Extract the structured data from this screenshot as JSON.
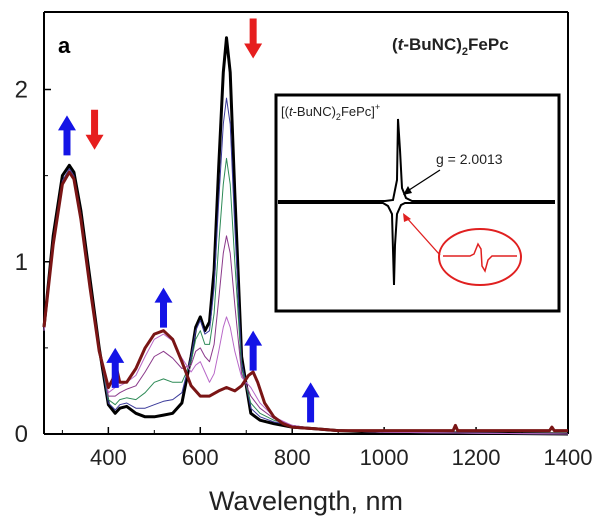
{
  "panel_label": "a",
  "compound_label": {
    "prefix": "(",
    "italic": "t",
    "mid": "-BuNC)",
    "sub": "2",
    "suffix": "FePc"
  },
  "inset": {
    "label": {
      "prefix": "[(",
      "italic": "t",
      "mid": "-BuNC)",
      "sub": "2",
      "tail": "FePc]",
      "sup": "+"
    },
    "annotation": "g = 2.0013"
  },
  "colors": {
    "up_arrow": "#1414e6",
    "down_arrow": "#e61e1e",
    "final_spectrum": "#7a1515",
    "initial_spectrum": "#000000",
    "circle": "#e02020",
    "epr_trace": "#000000"
  },
  "chart_data": {
    "type": "line",
    "xlabel": "Wavelength, nm",
    "ylabel": "",
    "xlim": [
      260,
      1400
    ],
    "ylim": [
      0,
      2.45
    ],
    "x_ticks": [
      400,
      600,
      800,
      1000,
      1200,
      1400
    ],
    "x_tick_labels": [
      "400",
      "600",
      "800",
      "1000",
      "1200",
      "1400"
    ],
    "y_ticks": [
      0,
      1,
      2
    ],
    "y_tick_labels": [
      "0",
      "1",
      "2"
    ],
    "grid": false,
    "legend": "none",
    "arrows": [
      {
        "direction": "up",
        "x": 310,
        "y": 1.85
      },
      {
        "direction": "down",
        "x": 370,
        "y": 1.65
      },
      {
        "direction": "up",
        "x": 415,
        "y": 0.5
      },
      {
        "direction": "up",
        "x": 520,
        "y": 0.85
      },
      {
        "direction": "down",
        "x": 715,
        "y": 2.18
      },
      {
        "direction": "up",
        "x": 715,
        "y": 0.6
      },
      {
        "direction": "up",
        "x": 840,
        "y": 0.3
      }
    ],
    "series": [
      {
        "color": "#000000",
        "width": 3,
        "x": [
          260,
          280,
          300,
          315,
          325,
          340,
          360,
          380,
          400,
          415,
          425,
          440,
          460,
          480,
          500,
          520,
          540,
          560,
          580,
          590,
          600,
          610,
          620,
          630,
          640,
          650,
          657,
          665,
          675,
          690,
          710,
          730,
          760,
          800,
          850,
          900,
          1000,
          1400
        ],
        "y": [
          0.62,
          1.15,
          1.5,
          1.56,
          1.52,
          1.3,
          0.9,
          0.5,
          0.17,
          0.12,
          0.15,
          0.16,
          0.12,
          0.1,
          0.1,
          0.11,
          0.12,
          0.18,
          0.45,
          0.62,
          0.68,
          0.6,
          0.65,
          0.95,
          1.55,
          2.1,
          2.3,
          2.1,
          1.4,
          0.45,
          0.12,
          0.08,
          0.06,
          0.04,
          0.03,
          0.02,
          0.01,
          0.0
        ]
      },
      {
        "color": "#3a3a9a",
        "width": 1,
        "x": [
          260,
          280,
          300,
          315,
          325,
          340,
          360,
          380,
          400,
          415,
          425,
          440,
          460,
          480,
          500,
          520,
          540,
          560,
          580,
          590,
          600,
          610,
          620,
          630,
          640,
          650,
          657,
          665,
          675,
          690,
          710,
          730,
          760,
          800,
          850,
          900,
          1000,
          1400
        ],
        "y": [
          0.6,
          1.12,
          1.47,
          1.54,
          1.5,
          1.28,
          0.88,
          0.5,
          0.18,
          0.14,
          0.17,
          0.18,
          0.15,
          0.15,
          0.17,
          0.19,
          0.2,
          0.24,
          0.45,
          0.6,
          0.66,
          0.58,
          0.6,
          0.85,
          1.35,
          1.8,
          1.95,
          1.8,
          1.2,
          0.42,
          0.15,
          0.1,
          0.07,
          0.05,
          0.03,
          0.02,
          0.01,
          0.0
        ]
      },
      {
        "color": "#2e8b57",
        "width": 1,
        "x": [
          260,
          280,
          300,
          315,
          325,
          340,
          360,
          380,
          400,
          415,
          425,
          440,
          460,
          480,
          500,
          520,
          540,
          560,
          580,
          590,
          600,
          610,
          620,
          630,
          640,
          650,
          657,
          665,
          675,
          690,
          710,
          730,
          760,
          800,
          850,
          900,
          1000,
          1400
        ],
        "y": [
          0.6,
          1.1,
          1.46,
          1.53,
          1.49,
          1.27,
          0.87,
          0.5,
          0.2,
          0.17,
          0.2,
          0.21,
          0.2,
          0.24,
          0.3,
          0.32,
          0.3,
          0.3,
          0.42,
          0.55,
          0.6,
          0.52,
          0.52,
          0.7,
          1.1,
          1.45,
          1.6,
          1.45,
          1.0,
          0.38,
          0.18,
          0.12,
          0.08,
          0.05,
          0.03,
          0.02,
          0.01,
          0.0
        ]
      },
      {
        "color": "#8b3a8b",
        "width": 1,
        "x": [
          260,
          280,
          300,
          315,
          325,
          340,
          360,
          380,
          400,
          415,
          425,
          440,
          460,
          480,
          500,
          520,
          540,
          560,
          580,
          590,
          600,
          610,
          620,
          630,
          640,
          650,
          657,
          665,
          675,
          690,
          710,
          730,
          760,
          800,
          850,
          900,
          1000,
          1400
        ],
        "y": [
          0.6,
          1.1,
          1.46,
          1.53,
          1.49,
          1.27,
          0.87,
          0.5,
          0.22,
          0.22,
          0.24,
          0.26,
          0.28,
          0.36,
          0.45,
          0.48,
          0.44,
          0.38,
          0.4,
          0.48,
          0.5,
          0.45,
          0.42,
          0.52,
          0.78,
          1.05,
          1.15,
          1.05,
          0.75,
          0.35,
          0.22,
          0.15,
          0.09,
          0.05,
          0.03,
          0.02,
          0.01,
          0.0
        ]
      },
      {
        "color": "#b868c8",
        "width": 1,
        "x": [
          260,
          280,
          300,
          315,
          325,
          340,
          360,
          380,
          400,
          415,
          425,
          440,
          460,
          480,
          500,
          520,
          540,
          560,
          580,
          590,
          600,
          610,
          620,
          630,
          640,
          650,
          657,
          665,
          675,
          690,
          710,
          730,
          760,
          800,
          850,
          900,
          1000,
          1400
        ],
        "y": [
          0.6,
          1.1,
          1.46,
          1.53,
          1.49,
          1.27,
          0.87,
          0.5,
          0.24,
          0.27,
          0.28,
          0.3,
          0.34,
          0.45,
          0.55,
          0.58,
          0.54,
          0.44,
          0.36,
          0.4,
          0.42,
          0.36,
          0.3,
          0.35,
          0.48,
          0.62,
          0.68,
          0.62,
          0.48,
          0.33,
          0.27,
          0.18,
          0.1,
          0.05,
          0.03,
          0.02,
          0.01,
          0.0
        ]
      },
      {
        "color": "#7a1515",
        "width": 3,
        "x": [
          260,
          280,
          300,
          315,
          325,
          340,
          360,
          380,
          400,
          410,
          418,
          425,
          440,
          460,
          480,
          500,
          520,
          540,
          560,
          580,
          600,
          620,
          640,
          657,
          675,
          690,
          705,
          715,
          725,
          740,
          760,
          780,
          800,
          850,
          900,
          1000,
          1150,
          1155,
          1160,
          1300,
          1360,
          1365,
          1370,
          1400
        ],
        "y": [
          0.62,
          1.1,
          1.45,
          1.52,
          1.48,
          1.25,
          0.85,
          0.48,
          0.27,
          0.32,
          0.38,
          0.3,
          0.3,
          0.38,
          0.5,
          0.58,
          0.6,
          0.55,
          0.42,
          0.28,
          0.22,
          0.22,
          0.25,
          0.27,
          0.25,
          0.28,
          0.34,
          0.36,
          0.3,
          0.18,
          0.1,
          0.06,
          0.04,
          0.03,
          0.02,
          0.02,
          0.02,
          0.05,
          0.02,
          0.02,
          0.02,
          0.04,
          0.02,
          0.02
        ]
      }
    ]
  }
}
